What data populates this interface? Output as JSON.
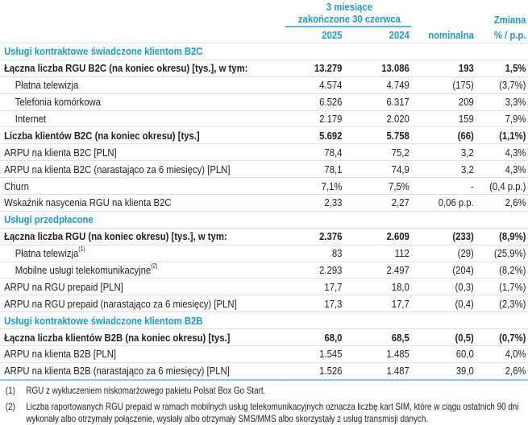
{
  "header": {
    "period_line1": "3 miesiące",
    "period_line2": "zakończone 30 czerwca",
    "change": "Zmiana",
    "years": [
      "2025",
      "2024"
    ],
    "nominal": "nominalna",
    "pct": "% / p.p."
  },
  "rows": [
    {
      "type": "sec",
      "label": "Usługi kontraktowe świadczone klientom B2C"
    },
    {
      "type": "b",
      "label": "Łączna liczba RGU B2C (na koniec okresu) [tys.], w tym:",
      "v2025": "13.279",
      "v2024": "13.086",
      "nom": "193",
      "pct": "1,5%"
    },
    {
      "type": "sub",
      "label": "Płatna telewizja",
      "v2025": "4.574",
      "v2024": "4.749",
      "nom": "(175)",
      "pct": "(3,7%)"
    },
    {
      "type": "sub",
      "label": "Telefonia komórkowa",
      "v2025": "6.526",
      "v2024": "6.317",
      "nom": "209",
      "pct": "3,3%"
    },
    {
      "type": "sub",
      "label": "Internet",
      "v2025": "2.179",
      "v2024": "2.020",
      "nom": "159",
      "pct": "7,9%"
    },
    {
      "type": "b",
      "label": "Liczba klientów B2C (na koniec okresu) [tys.]",
      "v2025": "5.692",
      "v2024": "5.758",
      "nom": "(66)",
      "pct": "(1,1%)"
    },
    {
      "type": "r",
      "label": "ARPU na klienta B2C [PLN]",
      "v2025": "78,4",
      "v2024": "75,2",
      "nom": "3,2",
      "pct": "4,3%"
    },
    {
      "type": "r",
      "label": "ARPU na klienta B2C (narastająco za 6 miesięcy) [PLN]",
      "v2025": "78,1",
      "v2024": "74,9",
      "nom": "3,2",
      "pct": "4,3%"
    },
    {
      "type": "r",
      "label": "Churn",
      "v2025": "7,1%",
      "v2024": "7,5%",
      "nom": "-",
      "pct": "(0,4 p.p.)"
    },
    {
      "type": "r",
      "label": "Wskaźnik nasycenia RGU na klienta B2C",
      "v2025": "2,33",
      "v2024": "2,27",
      "nom": "0,06 p.p.",
      "pct": "2,6%"
    },
    {
      "type": "sec",
      "label": "Usługi przedpłacone"
    },
    {
      "type": "b",
      "label": "Łączna liczba RGU (na koniec okresu) [tys.], w tym:",
      "v2025": "2.376",
      "v2024": "2.609",
      "nom": "(233)",
      "pct": "(8,9%)"
    },
    {
      "type": "sub",
      "label": "Płatna telewizja",
      "sup": "(1)",
      "v2025": "83",
      "v2024": "112",
      "nom": "(29)",
      "pct": "(25,9%)"
    },
    {
      "type": "sub",
      "label": "Mobilne usługi telekomunikacyjne",
      "sup": "(2)",
      "v2025": "2.293",
      "v2024": "2.497",
      "nom": "(204)",
      "pct": "(8,2%)"
    },
    {
      "type": "r",
      "label": "ARPU na RGU prepaid [PLN]",
      "v2025": "17,7",
      "v2024": "18,0",
      "nom": "(0,3)",
      "pct": "(1,7%)"
    },
    {
      "type": "r",
      "label": "ARPU na RGU prepaid (narastająco za 6 miesięcy) [PLN]",
      "v2025": "17,3",
      "v2024": "17,7",
      "nom": "(0,4)",
      "pct": "(2,3%)"
    },
    {
      "type": "sec",
      "label": "Usługi kontraktowe świadczone klientom B2B"
    },
    {
      "type": "b",
      "label": "Łączna liczba klientów B2B (na koniec okresu) [tys.]",
      "v2025": "68,0",
      "v2024": "68,5",
      "nom": "(0,5)",
      "pct": "(0,7%)"
    },
    {
      "type": "r",
      "label": "ARPU na klienta B2B [PLN]",
      "v2025": "1.545",
      "v2024": "1.485",
      "nom": "60,0",
      "pct": "4,0%"
    },
    {
      "type": "r last",
      "label": "ARPU na klienta B2B (narastająco za 6 miesięcy) [PLN]",
      "v2025": "1.526",
      "v2024": "1.487",
      "nom": "39,0",
      "pct": "2,6%"
    }
  ],
  "footnotes": [
    {
      "num": "(1)",
      "text": "RGU z wykluczeniem niskomarżowego pakietu Polsat Box Go Start."
    },
    {
      "num": "(2)",
      "text": "Liczba raportowanych RGU prepaid w ramach mobilnych usług telekomunikacyjnych oznacza liczbę kart SIM, które w ciągu ostatnich 90 dni wykonały albo otrzymały połączenie, wysłały albo otrzymały SMS/MMS albo skorzystały z usług transmisji danych."
    }
  ]
}
